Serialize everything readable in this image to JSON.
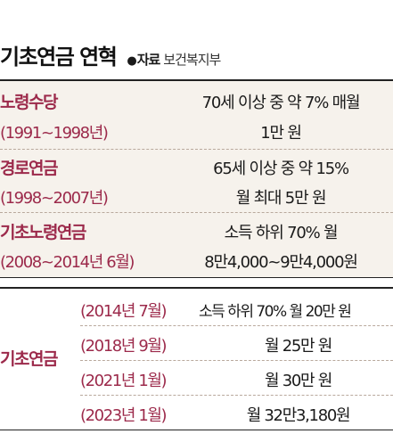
{
  "header": {
    "title": "기초연금 연혁",
    "source_bullet": "●",
    "source_label": "자료",
    "source_org": "보건복지부"
  },
  "history": [
    {
      "name": "노령수당",
      "period": "(1991~1998년)",
      "desc1": "70세 이상 중 약 7% 매월",
      "desc2": "1만 원"
    },
    {
      "name": "경로연금",
      "period": "(1998~2007년)",
      "desc1": "65세 이상 중 약 15%",
      "desc2": "월 최대 5만 원"
    },
    {
      "name": "기초노령연금",
      "period": "(2008~2014년 6월)",
      "desc1": "소득 하위 70% 월",
      "desc2": "8만4,000~9만4,000원"
    }
  ],
  "basic_pension": {
    "name": "기초연금",
    "rows": [
      {
        "date": "(2014년 7월)",
        "amount": "소득 하위 70% 월 20만 원"
      },
      {
        "date": "(2018년 9월)",
        "amount": "월 25만 원"
      },
      {
        "date": "(2021년 1월)",
        "amount": "월 30만 원"
      },
      {
        "date": "(2023년 1월)",
        "amount": "월 32만3,180원"
      }
    ]
  },
  "colors": {
    "accent": "#9c2a4b",
    "band": "#f6f2ec",
    "divider": "#b9a99d"
  }
}
